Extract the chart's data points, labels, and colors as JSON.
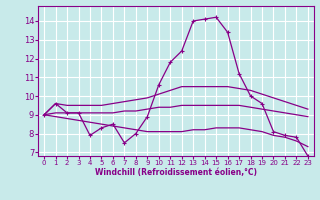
{
  "xlabel": "Windchill (Refroidissement éolien,°C)",
  "xlim": [
    -0.5,
    23.5
  ],
  "ylim": [
    6.8,
    14.8
  ],
  "yticks": [
    7,
    8,
    9,
    10,
    11,
    12,
    13,
    14
  ],
  "xticks": [
    0,
    1,
    2,
    3,
    4,
    5,
    6,
    7,
    8,
    9,
    10,
    11,
    12,
    13,
    14,
    15,
    16,
    17,
    18,
    19,
    20,
    21,
    22,
    23
  ],
  "background_color": "#c8eaea",
  "grid_color": "#b0d8d8",
  "line_color": "#880088",
  "lines": [
    {
      "x": [
        0,
        1,
        2,
        3,
        4,
        5,
        6,
        7,
        8,
        9,
        10,
        11,
        12,
        13,
        14,
        15,
        16,
        17,
        18,
        19,
        20,
        21,
        22,
        23
      ],
      "y": [
        9.0,
        9.6,
        9.1,
        9.1,
        7.9,
        8.3,
        8.5,
        7.5,
        8.0,
        8.9,
        10.6,
        11.8,
        12.4,
        14.0,
        14.1,
        14.2,
        13.4,
        11.2,
        10.0,
        9.6,
        8.1,
        7.9,
        7.8,
        6.8
      ],
      "marker": "+"
    },
    {
      "x": [
        0,
        1,
        2,
        3,
        4,
        5,
        6,
        7,
        8,
        9,
        10,
        11,
        12,
        13,
        14,
        15,
        16,
        17,
        18,
        19,
        20,
        21,
        22,
        23
      ],
      "y": [
        9.0,
        9.6,
        9.5,
        9.5,
        9.5,
        9.5,
        9.6,
        9.7,
        9.8,
        9.9,
        10.1,
        10.3,
        10.5,
        10.5,
        10.5,
        10.5,
        10.5,
        10.4,
        10.3,
        10.1,
        9.9,
        9.7,
        9.5,
        9.3
      ],
      "marker": null
    },
    {
      "x": [
        0,
        1,
        2,
        3,
        4,
        5,
        6,
        7,
        8,
        9,
        10,
        11,
        12,
        13,
        14,
        15,
        16,
        17,
        18,
        19,
        20,
        21,
        22,
        23
      ],
      "y": [
        9.0,
        9.1,
        9.1,
        9.1,
        9.1,
        9.1,
        9.1,
        9.2,
        9.2,
        9.3,
        9.4,
        9.4,
        9.5,
        9.5,
        9.5,
        9.5,
        9.5,
        9.5,
        9.4,
        9.3,
        9.2,
        9.1,
        9.0,
        8.9
      ],
      "marker": null
    },
    {
      "x": [
        0,
        1,
        2,
        3,
        4,
        5,
        6,
        7,
        8,
        9,
        10,
        11,
        12,
        13,
        14,
        15,
        16,
        17,
        18,
        19,
        20,
        21,
        22,
        23
      ],
      "y": [
        9.0,
        8.9,
        8.8,
        8.7,
        8.6,
        8.5,
        8.4,
        8.3,
        8.2,
        8.1,
        8.1,
        8.1,
        8.1,
        8.2,
        8.2,
        8.3,
        8.3,
        8.3,
        8.2,
        8.1,
        7.9,
        7.8,
        7.6,
        7.3
      ],
      "marker": null
    }
  ]
}
